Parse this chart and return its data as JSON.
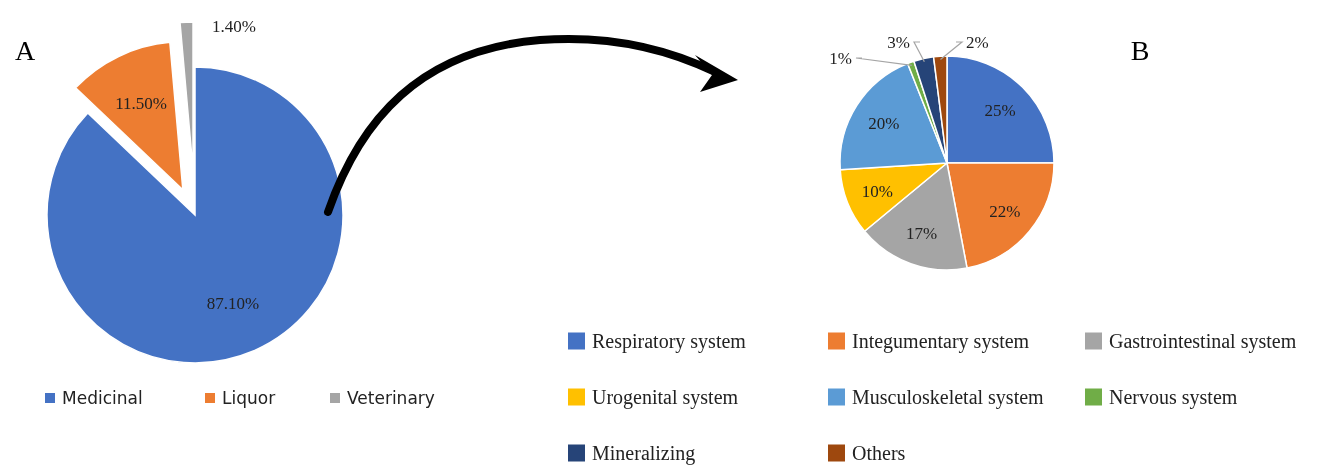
{
  "chart_data": [
    {
      "type": "pie",
      "title": "A",
      "categories": [
        "Medicinal",
        "Liquor",
        "Veterinary"
      ],
      "values": [
        87.1,
        11.5,
        1.4
      ],
      "colors": [
        "#4472c4",
        "#ed7d31",
        "#a5a5a5"
      ],
      "value_labels": [
        "87.10%",
        "11.50%",
        "1.40%"
      ],
      "legend": "bottom"
    },
    {
      "type": "pie",
      "title": "B",
      "categories": [
        "Respiratory system",
        "Integumentary system",
        "Gastrointestinal system",
        "Urogenital system",
        "Musculoskeletal system",
        "Nervous system",
        "Mineralizing",
        "Others"
      ],
      "values": [
        25,
        22,
        17,
        10,
        20,
        1,
        3,
        2
      ],
      "colors": [
        "#4472c4",
        "#ed7d31",
        "#a5a5a5",
        "#ffc000",
        "#5b9bd5",
        "#70ad47",
        "#264478",
        "#9e480e"
      ],
      "value_labels": [
        "25%",
        "22%",
        "17%",
        "10%",
        "20%",
        "1%",
        "3%",
        "2%"
      ],
      "legend": "bottom"
    }
  ]
}
